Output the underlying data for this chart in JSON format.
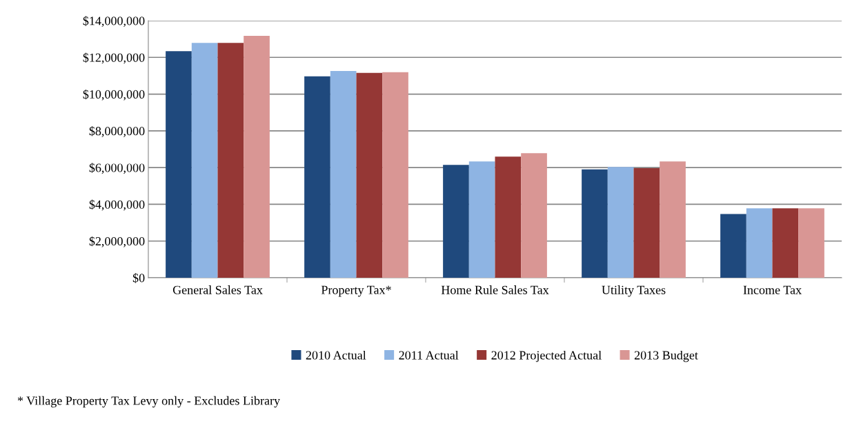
{
  "chart_data": {
    "type": "bar",
    "categories": [
      "General Sales Tax",
      "Property Tax*",
      "Home Rule Sales Tax",
      "Utility Taxes",
      "Income Tax"
    ],
    "series": [
      {
        "name": "2010 Actual",
        "color": "#1f497d",
        "values": [
          12340000,
          10970000,
          6150000,
          5900000,
          3470000
        ]
      },
      {
        "name": "2011 Actual",
        "color": "#8eb4e3",
        "values": [
          12790000,
          11260000,
          6330000,
          6030000,
          3780000
        ]
      },
      {
        "name": "2012 Projected Actual",
        "color": "#953735",
        "values": [
          12790000,
          11160000,
          6600000,
          5970000,
          3780000
        ]
      },
      {
        "name": "2013 Budget",
        "color": "#d99694",
        "values": [
          13170000,
          11190000,
          6780000,
          6330000,
          3780000
        ]
      }
    ],
    "ylim": [
      0,
      14000000
    ],
    "yticks": [
      {
        "value": 0,
        "label": "$0"
      },
      {
        "value": 2000000,
        "label": "$2,000,000"
      },
      {
        "value": 4000000,
        "label": "$4,000,000"
      },
      {
        "value": 6000000,
        "label": "$6,000,000"
      },
      {
        "value": 8000000,
        "label": "$8,000,000"
      },
      {
        "value": 10000000,
        "label": "$10,000,000"
      },
      {
        "value": 12000000,
        "label": "$12,000,000"
      },
      {
        "value": 14000000,
        "label": "$14,000,000"
      }
    ],
    "grid": "y",
    "legend": "bottom",
    "annotations": [
      "* Village Property Tax Levy only - Excludes Library"
    ]
  }
}
